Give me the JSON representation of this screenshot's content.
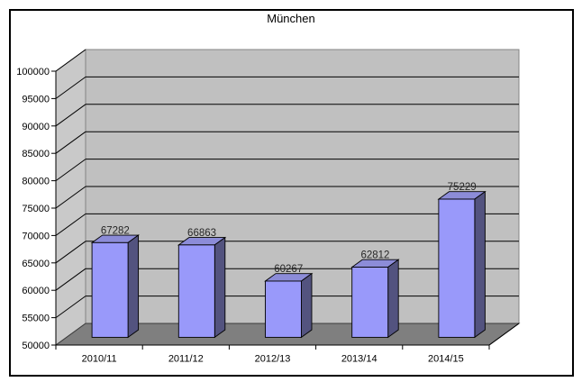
{
  "window": {
    "background": "#ffffff",
    "border_color": "#000000"
  },
  "chart_data": {
    "type": "bar",
    "style": "3d-column",
    "title": "München",
    "categories": [
      "2010/11",
      "2011/12",
      "2012/13",
      "2013/14",
      "2014/15"
    ],
    "values": [
      67282,
      66863,
      60267,
      62812,
      75229
    ],
    "data_labels": [
      "67282",
      "66863",
      "60267",
      "62812",
      "75229"
    ],
    "xlabel": "",
    "ylabel": "",
    "ylim": [
      50000,
      100000
    ],
    "ytick_step": 5000,
    "ytick_labels": [
      "100000",
      "95000",
      "90000",
      "85000",
      "80000",
      "75000",
      "70000",
      "65000",
      "60000",
      "55000",
      "50000"
    ],
    "grid": true,
    "legend": false,
    "colors": {
      "bar_front": "#9999FA",
      "bar_side": "#53537F",
      "bar_top": "#8C8CD8",
      "back_wall": "#C0C0C0",
      "side_wall": "#C9C9C9",
      "floor": "#7F7F7F",
      "wall_outline": "#848484",
      "gridline": "#000000",
      "axis": "#000000",
      "text": "#000000",
      "value_label_text": "#262626"
    }
  }
}
